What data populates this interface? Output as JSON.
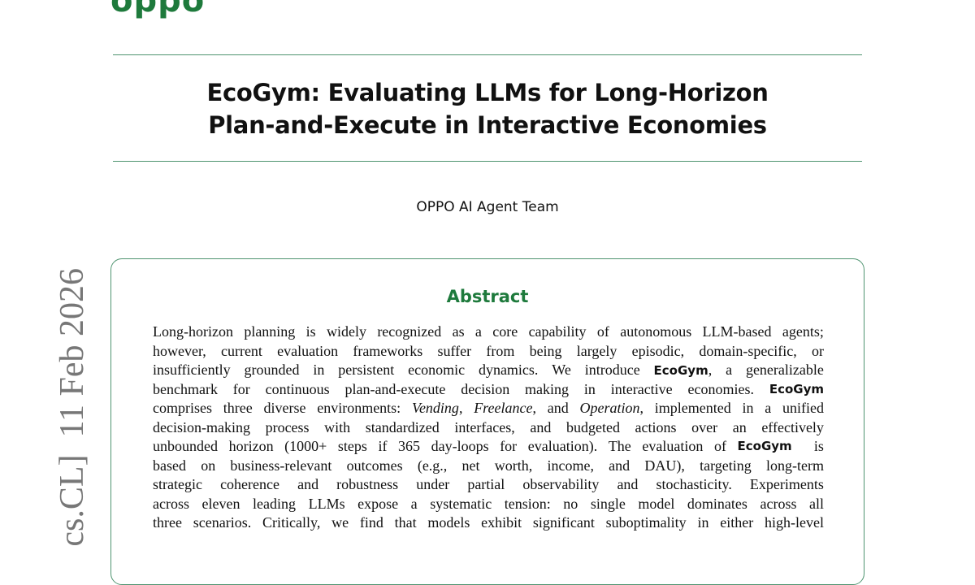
{
  "logo": "oppo",
  "title_lines": [
    "EcoGym: Evaluating LLMs for Long-Horizon",
    "Plan-and-Execute in Interactive Economies"
  ],
  "author": "OPPO AI Agent Team",
  "arxiv_stamp": "cs.CL]  11 Feb 2026",
  "abstract": {
    "heading": "Abstract",
    "lines": [
      [
        {
          "t": "Long-horizon planning is widely recognized as a core capability of autonomous LLM-based agents;"
        }
      ],
      [
        {
          "t": "however, current evaluation frameworks suffer from being largely episodic, domain-specific, or"
        }
      ],
      [
        {
          "t": "insufficiently grounded in persistent economic dynamics. We introduce "
        },
        {
          "t": "EcoGym",
          "s": "b"
        },
        {
          "t": ", a generalizable"
        }
      ],
      [
        {
          "t": "benchmark for continuous plan-and-execute decision making in interactive economies. "
        },
        {
          "t": "EcoGym",
          "s": "b"
        }
      ],
      [
        {
          "t": "comprises three diverse environments: "
        },
        {
          "t": "Vending",
          "s": "i"
        },
        {
          "t": ", "
        },
        {
          "t": "Freelance",
          "s": "i"
        },
        {
          "t": ", and "
        },
        {
          "t": "Operation",
          "s": "i"
        },
        {
          "t": ", implemented in a unified"
        }
      ],
      [
        {
          "t": "decision-making process with standardized interfaces, and budgeted actions over an effectively"
        }
      ],
      [
        {
          "t": "unbounded horizon (1000+ steps if 365 day-loops for evaluation). The evaluation of "
        },
        {
          "t": "EcoGym",
          "s": "b"
        },
        {
          "t": " is"
        }
      ],
      [
        {
          "t": "based on business-relevant outcomes (e.g., net worth, income, and DAU), targeting long-term"
        }
      ],
      [
        {
          "t": "strategic coherence and robustness under partial observability and stochasticity. Experiments"
        }
      ],
      [
        {
          "t": "across eleven leading LLMs expose a systematic tension: no single model dominates across all"
        }
      ],
      [
        {
          "t": "three scenarios. Critically, we find that models exhibit significant suboptimality in either high-level"
        }
      ]
    ]
  }
}
